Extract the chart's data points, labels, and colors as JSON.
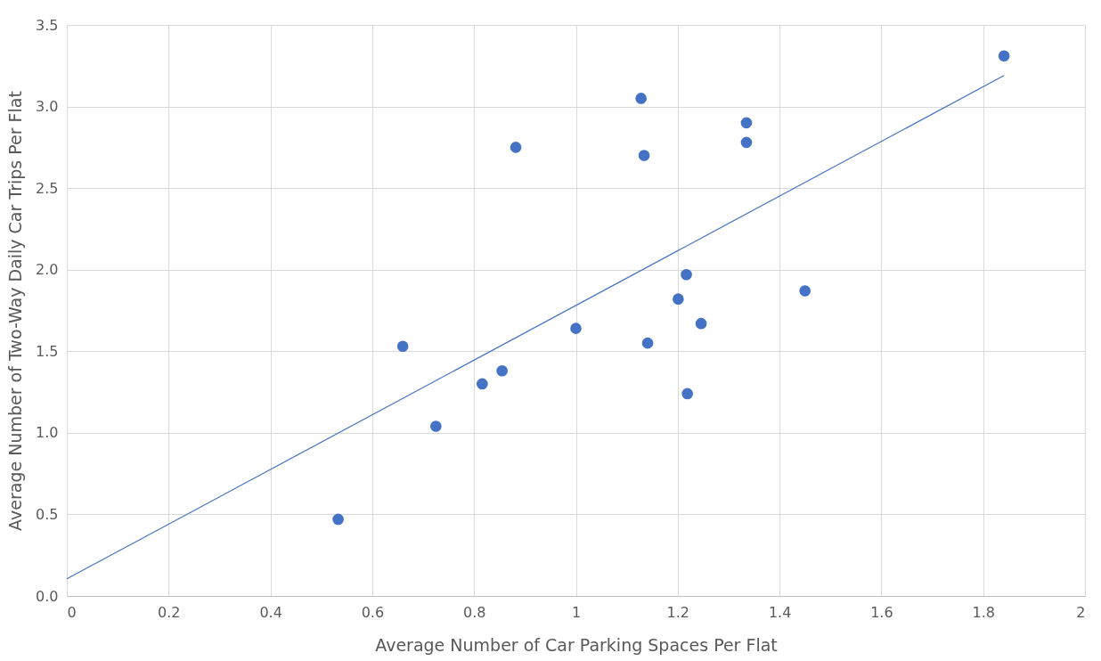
{
  "chart_data": {
    "type": "scatter",
    "xlabel": "Average Number of Car Parking Spaces Per Flat",
    "ylabel": "Average Number of Two-Way Daily Car Trips Per Flat",
    "xlim": [
      0,
      2
    ],
    "xticks": [
      0,
      0.2,
      0.4,
      0.6,
      0.8,
      1,
      1.2,
      1.4,
      1.6,
      1.8,
      2
    ],
    "ylim": [
      0,
      3.5
    ],
    "yticks": [
      {
        "value": 0,
        "label": "0.0"
      },
      {
        "value": 0.5,
        "label": "0.5"
      },
      {
        "value": 1,
        "label": "1.0"
      },
      {
        "value": 1.5,
        "label": "1.5"
      },
      {
        "value": 2,
        "label": "2.0"
      },
      {
        "value": 2.5,
        "label": "2.5"
      },
      {
        "value": 3,
        "label": "3.0"
      },
      {
        "value": 3.5,
        "label": "3.5"
      }
    ],
    "grid": true,
    "legend": false,
    "series": [
      {
        "marker": "circle",
        "color": "#4472c4",
        "x": [
          1.841,
          1.128,
          1.335,
          1.335,
          0.882,
          1.134,
          1.217,
          1.201,
          1.45,
          1.246,
          1.0,
          1.141,
          0.66,
          0.855,
          0.816,
          1.219,
          0.725,
          0.533
        ],
        "values": [
          3.31,
          3.05,
          2.9,
          2.78,
          2.75,
          2.7,
          1.97,
          1.82,
          1.87,
          1.67,
          1.64,
          1.55,
          1.53,
          1.38,
          1.3,
          1.24,
          1.04,
          0.47
        ]
      },
      {
        "type": "line",
        "color": "#4472c4",
        "line_style": "solid",
        "x": [
          0,
          1.841
        ],
        "values": [
          0.105,
          3.19
        ]
      }
    ]
  }
}
